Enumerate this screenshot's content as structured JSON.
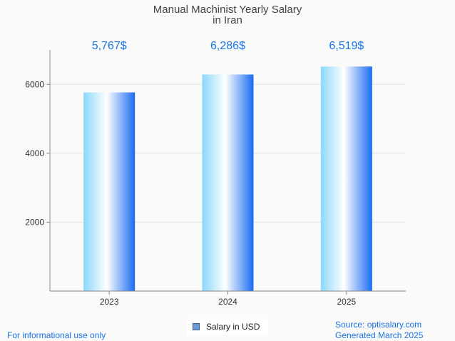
{
  "chart_data": {
    "type": "bar",
    "title_lines": [
      "Manual Machinist Yearly Salary",
      "in Iran"
    ],
    "categories": [
      "2023",
      "2024",
      "2025"
    ],
    "series": [
      {
        "name": "Salary in USD",
        "values": [
          5767,
          6286,
          6519
        ]
      }
    ],
    "value_labels": [
      "5,767$",
      "6,286$",
      "6,519$"
    ],
    "y_ticks": [
      2000,
      4000,
      6000
    ],
    "ylim": [
      0,
      7000
    ],
    "grid": true,
    "legend_position": "bottom-center",
    "colors": {
      "bar_edge": "#1a6cf2",
      "bar_light": "#8ad8fb",
      "bar_center": "#ffffff",
      "label": "#1a73e8"
    }
  },
  "legend": {
    "label": "Salary in USD"
  },
  "footer": {
    "left": "For informational use only",
    "source": "Source: optisalary.com",
    "generated": "Generated March 2025"
  }
}
